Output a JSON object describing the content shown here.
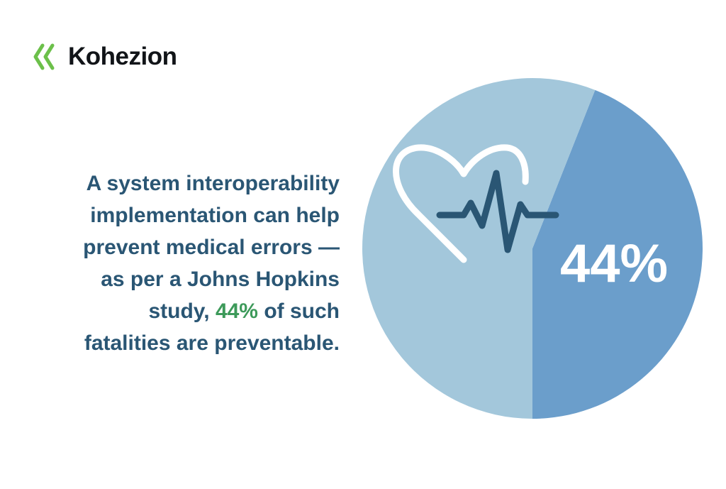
{
  "brand": {
    "name": "Kohezion",
    "accent_color": "#6cc04a",
    "logo_icon": "double-chevron-left-icon"
  },
  "statement": {
    "line1": "A system interoperability",
    "line2": "implementation can help",
    "line3": "prevent medical errors —",
    "line4": "as per a Johns Hopkins",
    "line5_prefix": "study, ",
    "line5_highlight": "44%",
    "line5_suffix": " of such",
    "line6": "fatalities are preventable.",
    "text_color": "#2a5674",
    "highlight_color": "#3d9a5a"
  },
  "chart_data": {
    "type": "pie",
    "slices": [
      {
        "value": 44,
        "color": "#6b9ecb"
      },
      {
        "value": 56,
        "color": "#a3c7db"
      }
    ],
    "center_label": "44%",
    "icon": "heart-pulse-icon"
  }
}
